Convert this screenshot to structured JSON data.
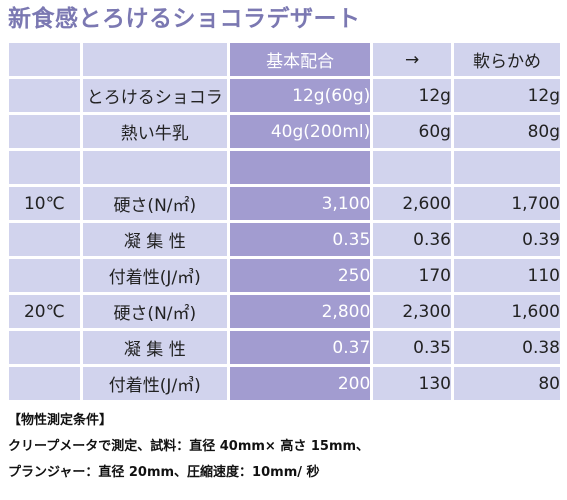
{
  "title": "新食感とろけるショコラデザート",
  "header": {
    "col0": "",
    "col1": "",
    "col2": "基本配合",
    "col3": "→",
    "col4": "軟らかめ"
  },
  "rows": [
    {
      "group": "",
      "label": "とろけるショコラ",
      "base": "12g(60g)",
      "mid": "12g",
      "soft": "12g"
    },
    {
      "group": "",
      "label": "熱い牛乳",
      "base": "40g(200ml)",
      "mid": "60g",
      "soft": "80g"
    },
    {
      "group": "",
      "label": "",
      "base": "",
      "mid": "",
      "soft": ""
    },
    {
      "group": "10℃",
      "label": "硬さ(N/㎡)",
      "base": "3,100",
      "mid": "2,600",
      "soft": "1,700"
    },
    {
      "group": "",
      "label": "凝 集 性",
      "base": "0.35",
      "mid": "0.36",
      "soft": "0.39"
    },
    {
      "group": "",
      "label": "付着性(J/㎥)",
      "base": "250",
      "mid": "170",
      "soft": "110"
    },
    {
      "group": "20℃",
      "label": "硬さ(N/㎡)",
      "base": "2,800",
      "mid": "2,300",
      "soft": "1,600"
    },
    {
      "group": "",
      "label": "凝 集 性",
      "base": "0.37",
      "mid": "0.35",
      "soft": "0.38"
    },
    {
      "group": "",
      "label": "付着性(J/㎥)",
      "base": "200",
      "mid": "130",
      "soft": "80"
    }
  ],
  "notes": {
    "heading": "【物性測定条件】",
    "line1": "クリープメータで測定、試料：直径 40mm× 高さ 15mm、",
    "line2": "プランジャー：直径 20mm、圧縮速度：10mm/ 秒"
  },
  "colors": {
    "title": "#7b78b2",
    "cell_light": "#d1d3ed",
    "cell_accent": "#a29cd0"
  }
}
